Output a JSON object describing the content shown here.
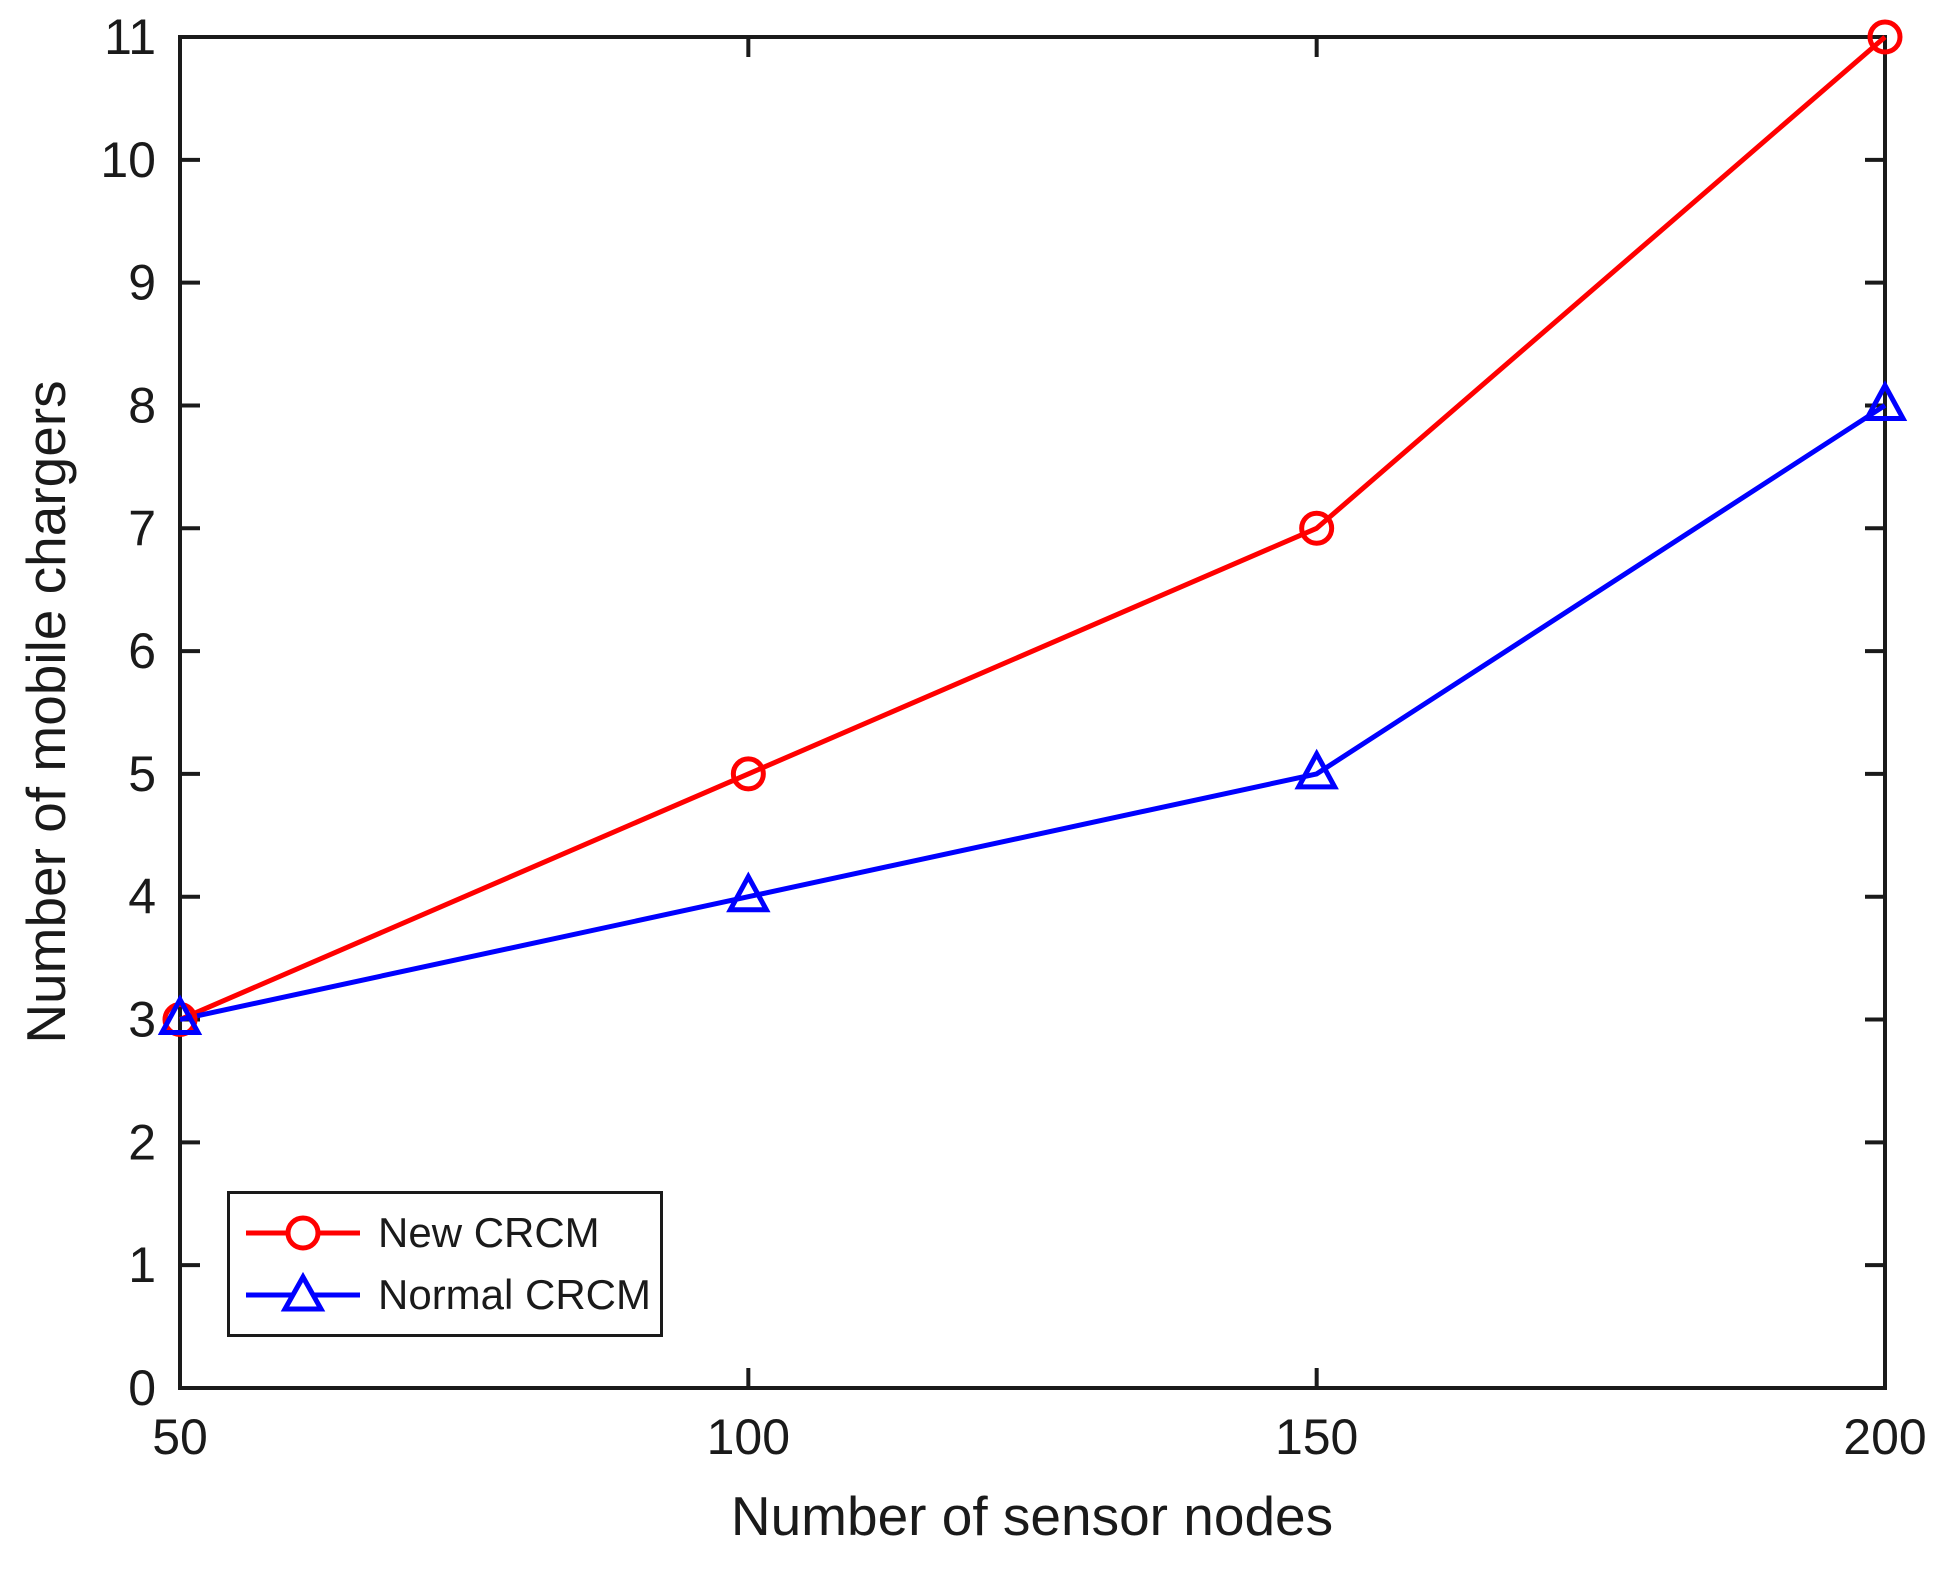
{
  "chart_data": {
    "type": "line",
    "title": "",
    "xlabel": "Number of sensor nodes",
    "ylabel": "Number of mobile chargers",
    "x": [
      50,
      100,
      150,
      200
    ],
    "xticks": [
      50,
      100,
      150,
      200
    ],
    "xtick_labels": [
      "50",
      "100",
      "150",
      "200"
    ],
    "yticks": [
      0,
      1,
      2,
      3,
      4,
      5,
      6,
      7,
      8,
      9,
      10,
      11
    ],
    "ytick_labels": [
      "0",
      "1",
      "2",
      "3",
      "4",
      "5",
      "6",
      "7",
      "8",
      "9",
      "10",
      "11"
    ],
    "xlim": [
      50,
      200
    ],
    "ylim": [
      0,
      11
    ],
    "grid": false,
    "legend_position": "bottom-left",
    "axis_color": "#1a1a1a",
    "background_color": "#ffffff",
    "series": [
      {
        "name": "New CRCM",
        "color": "#ff0000",
        "marker": "circle",
        "values": [
          3,
          5,
          7,
          11
        ]
      },
      {
        "name": "Normal CRCM",
        "color": "#0000ff",
        "marker": "triangle",
        "values": [
          3,
          4,
          5,
          8
        ]
      }
    ]
  }
}
